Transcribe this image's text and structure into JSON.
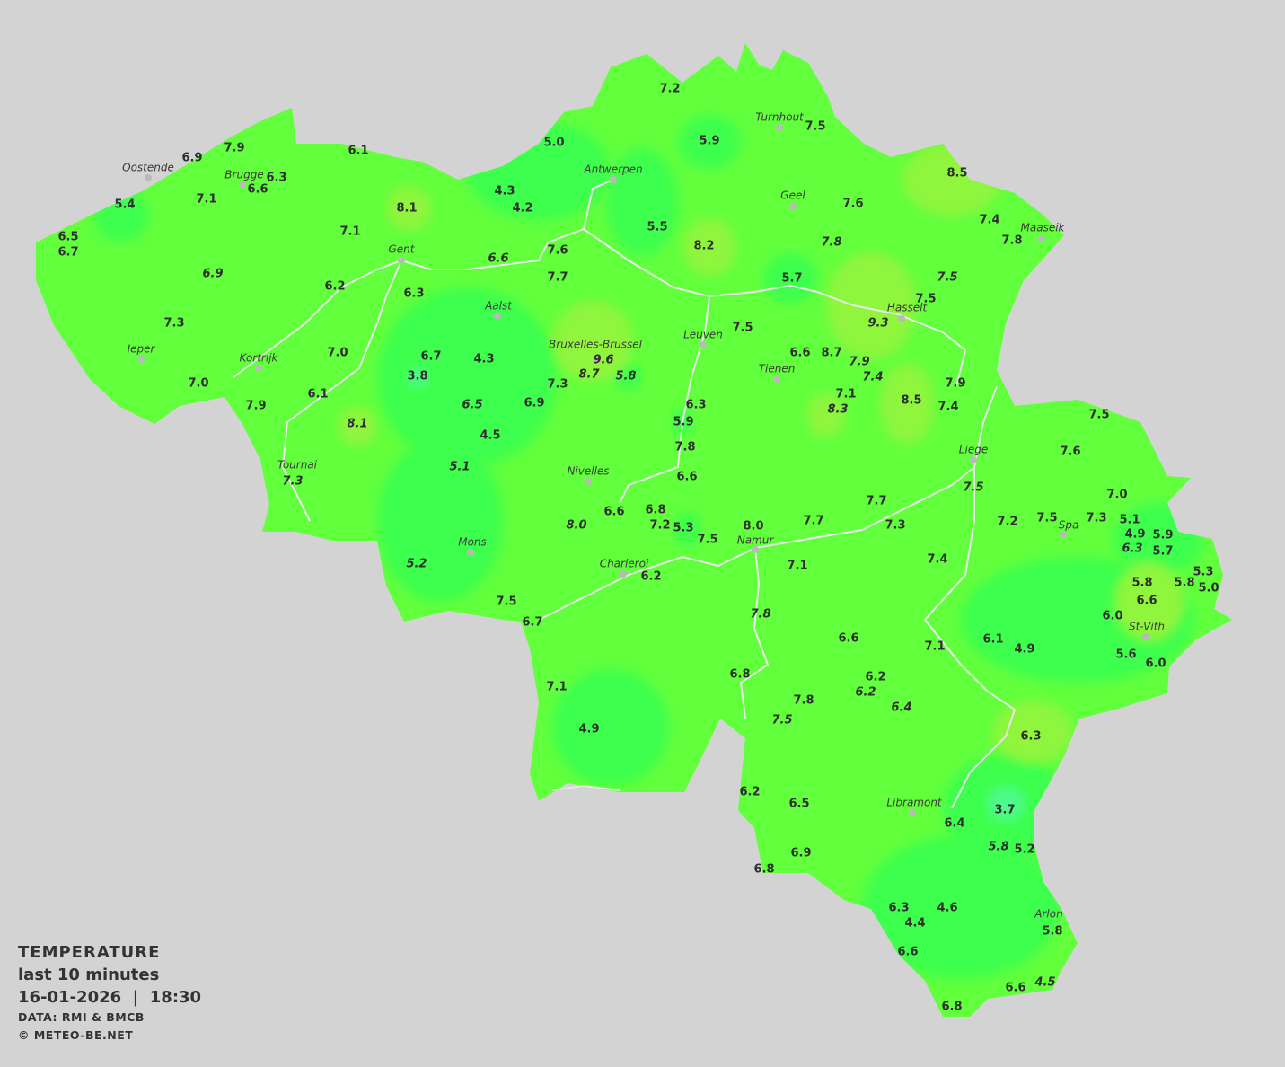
{
  "legend": {
    "title": "TEMPERATURE",
    "period": "last 10 minutes",
    "datetime": "16-01-2026  |  18:30",
    "source": "DATA: RMI & BMCB",
    "copyright": "© METEO-BE.NET"
  },
  "colors": {
    "background": "#d3d3d3",
    "base": "#62ff3c",
    "cool": "#3cff4e",
    "colder": "#4dfa8a",
    "warm": "#8ff53c",
    "rivers": "#e8e8e8"
  },
  "units": "°C",
  "cities": [
    "Turnhout",
    "Oostende",
    "Brugge",
    "Antwerpen",
    "Geel",
    "Maaseik",
    "Gent",
    "Aalst",
    "Hasselt",
    "Leuven",
    "Bruxelles-Brussel",
    "Ieper",
    "Kortrijk",
    "Tienen",
    "Liege",
    "Tournai",
    "Nivelles",
    "Spa",
    "Namur",
    "Mons",
    "Charleroi",
    "St-Vith",
    "Libramont",
    "Arlon"
  ],
  "stations": [
    "7.2",
    "5.9",
    "7.5",
    "6.1",
    "5.0",
    "7.9",
    "6.9",
    "6.3",
    "6.6",
    "7.1",
    "5.4",
    "8.1",
    "4.3",
    "4.2",
    "5.5",
    "8.2",
    "7.6",
    "8.5",
    "7.4",
    "7.8",
    "7.8",
    "6.5",
    "6.7",
    "7.1",
    "6.6",
    "7.6",
    "7.7",
    "6.9",
    "6.2",
    "6.3",
    "5.7",
    "7.5",
    "7.5",
    "9.3",
    "7.3",
    "7.5",
    "9.6",
    "8.7",
    "5.8",
    "7.0",
    "6.7",
    "4.3",
    "6.6",
    "8.7",
    "7.9",
    "7.4",
    "3.8",
    "7.0",
    "7.3",
    "7.9",
    "6.1",
    "7.1",
    "8.3",
    "8.5",
    "6.3",
    "6.5",
    "6.9",
    "7.9",
    "7.4",
    "5.9",
    "8.1",
    "7.5",
    "4.5",
    "7.8",
    "7.6",
    "5.1",
    "7.3",
    "6.6",
    "7.5",
    "7.0",
    "7.7",
    "6.6",
    "6.8",
    "7.5",
    "7.3",
    "7.2",
    "5.1",
    "7.2",
    "5.3",
    "8.0",
    "8.0",
    "7.7",
    "7.3",
    "4.9",
    "5.9",
    "7.5",
    "6.3",
    "5.7",
    "7.4",
    "5.2",
    "7.1",
    "5.3",
    "6.2",
    "5.8",
    "5.8",
    "5.0",
    "6.6",
    "7.5",
    "7.8",
    "6.0",
    "6.7",
    "6.6",
    "6.1",
    "7.1",
    "4.9",
    "5.6",
    "6.8",
    "6.0",
    "6.2",
    "6.2",
    "7.1",
    "7.8",
    "6.4",
    "7.5",
    "4.9",
    "6.3",
    "6.2",
    "6.5",
    "3.7",
    "6.4",
    "5.8",
    "5.2",
    "6.9",
    "6.8",
    "6.3",
    "4.6",
    "4.4",
    "5.8",
    "6.6",
    "6.6",
    "4.5",
    "6.8"
  ]
}
